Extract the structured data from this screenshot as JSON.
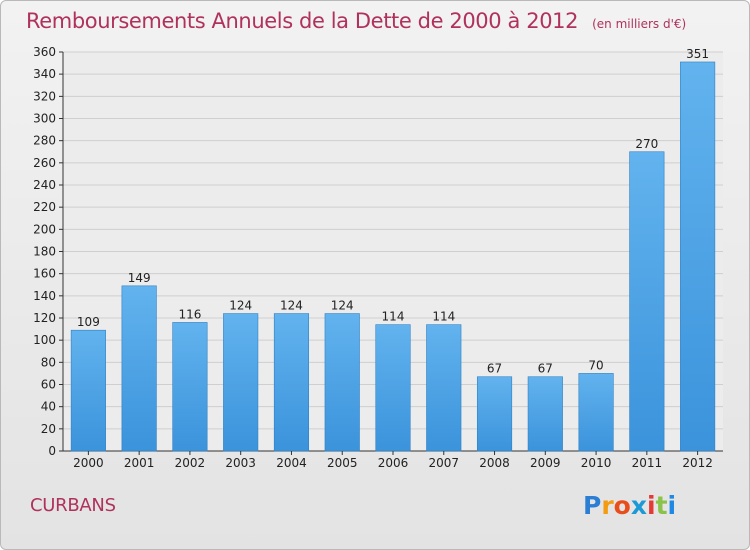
{
  "title": "Remboursements Annuels de la Dette de 2000 à 2012",
  "subtitle": "(en milliers d'€)",
  "commune": "CURBANS",
  "logo": {
    "text": "Proxiti",
    "letters": [
      "P",
      "r",
      "o",
      "x",
      "i",
      "t",
      "i"
    ],
    "colors": [
      "#2a7fd4",
      "#f39c12",
      "#e84e1b",
      "#1d9ad6",
      "#e53935",
      "#8bc34a",
      "#1e88e5"
    ]
  },
  "colors": {
    "title": "#b0315c",
    "bar": "#3b93db",
    "bar_light": "#62b3ee",
    "grid": "#cfcfcf",
    "axis": "#333333"
  },
  "chart_data": {
    "type": "bar",
    "title": "Remboursements Annuels de la Dette de 2000 à 2012",
    "unit": "en milliers d'€",
    "categories": [
      "2000",
      "2001",
      "2002",
      "2003",
      "2004",
      "2005",
      "2006",
      "2007",
      "2008",
      "2009",
      "2010",
      "2011",
      "2012"
    ],
    "values": [
      109,
      149,
      116,
      124,
      124,
      124,
      114,
      114,
      67,
      67,
      70,
      270,
      351
    ],
    "ylim": [
      0,
      360
    ],
    "yticks": [
      0,
      20,
      40,
      60,
      80,
      100,
      120,
      140,
      160,
      180,
      200,
      220,
      240,
      260,
      280,
      300,
      320,
      340,
      360
    ],
    "grid": true,
    "xlabel": "",
    "ylabel": ""
  }
}
